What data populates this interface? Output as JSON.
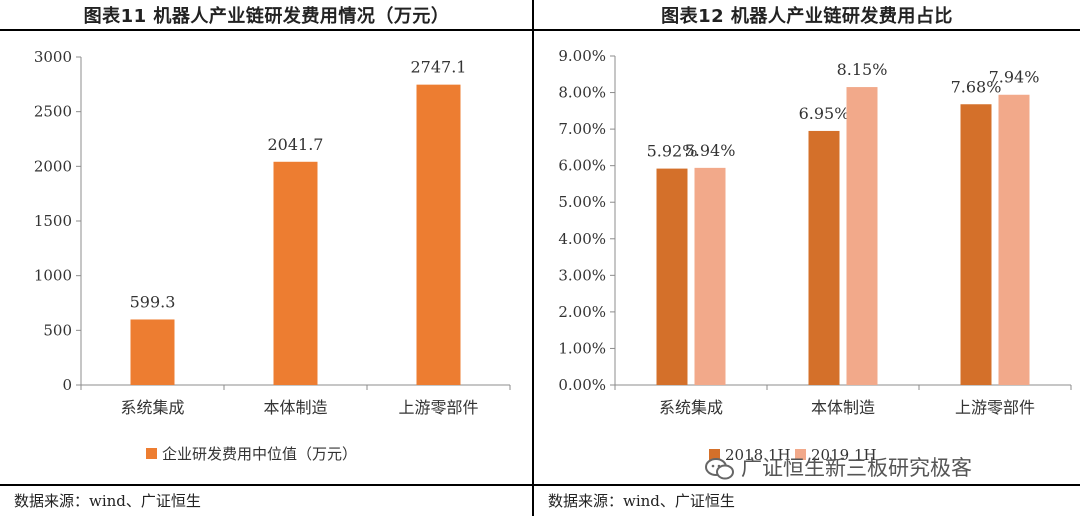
{
  "left": {
    "title": "图表11  机器人产业链研发费用情况（万元）",
    "source": "数据来源：wind、广证恒生"
  },
  "right": {
    "title": "图表12  机器人产业链研发费用占比",
    "source": "数据来源：wind、广证恒生"
  },
  "watermark": "广证恒生新三板研究极客",
  "colors": {
    "bar_left": "#ED7D31",
    "s2018": "#D4702A",
    "s2019": "#F2A98A",
    "axis": "#8c8c8c"
  },
  "chart_data": [
    {
      "type": "bar",
      "title": "图表11  机器人产业链研发费用情况（万元）",
      "categories": [
        "系统集成",
        "本体制造",
        "上游零部件"
      ],
      "series": [
        {
          "name": "企业研发费用中位值（万元）",
          "values": [
            599.3,
            2041.7,
            2747.1
          ],
          "value_labels": [
            "599.3",
            "2041.7",
            "2747.1"
          ]
        }
      ],
      "ylim": [
        0,
        3000
      ],
      "yticks": [
        0,
        500,
        1000,
        1500,
        2000,
        2500,
        3000
      ],
      "ytick_labels": [
        "0",
        "500",
        "1000",
        "1500",
        "2000",
        "2500",
        "3000"
      ],
      "legend": "bottom",
      "grid": false
    },
    {
      "type": "bar",
      "title": "图表12  机器人产业链研发费用占比",
      "categories": [
        "系统集成",
        "本体制造",
        "上游零部件"
      ],
      "series": [
        {
          "name": "2018 1H",
          "values": [
            5.92,
            6.95,
            7.68
          ],
          "value_labels": [
            "5.92%",
            "6.95%",
            "7.68%"
          ]
        },
        {
          "name": "2019 1H",
          "values": [
            5.94,
            8.15,
            7.94
          ],
          "value_labels": [
            "5.94%",
            "8.15%",
            "7.94%"
          ]
        }
      ],
      "ylim": [
        0,
        9
      ],
      "yticks": [
        0,
        1,
        2,
        3,
        4,
        5,
        6,
        7,
        8,
        9
      ],
      "ytick_labels": [
        "0.00%",
        "1.00%",
        "2.00%",
        "3.00%",
        "4.00%",
        "5.00%",
        "6.00%",
        "7.00%",
        "8.00%",
        "9.00%"
      ],
      "legend": "bottom",
      "grid": false
    }
  ]
}
